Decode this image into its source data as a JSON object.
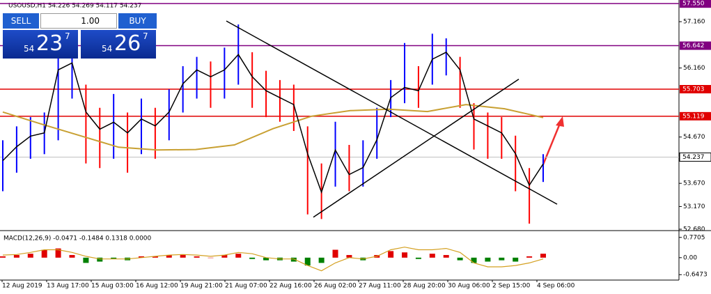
{
  "chart_data": {
    "type": "candlestick",
    "title": "USOUSD,H1  54.226 54.269 54.117 54.237",
    "x_labels": [
      "12 Aug 2019",
      "13 Aug 17:00",
      "15 Aug 03:00",
      "16 Aug 12:00",
      "19 Aug 21:00",
      "21 Aug 07:00",
      "22 Aug 16:00",
      "26 Aug 02:00",
      "27 Aug 11:00",
      "28 Aug 20:00",
      "30 Aug 06:00",
      "2 Sep 15:00",
      "4 Sep 06:00"
    ],
    "ylim": [
      52.65,
      57.628
    ],
    "yticks": [
      {
        "value": 57.16,
        "label": "57.160"
      },
      {
        "value": 56.16,
        "label": "56.160"
      },
      {
        "value": 54.67,
        "label": "54.670"
      },
      {
        "value": 53.67,
        "label": "53.670"
      },
      {
        "value": 53.17,
        "label": "53.170"
      },
      {
        "value": 52.68,
        "label": "52.680"
      }
    ],
    "levels": [
      {
        "price": 57.55,
        "label": "57.550",
        "color": "#800080"
      },
      {
        "price": 56.642,
        "label": "56.642",
        "color": "#800080"
      },
      {
        "price": 55.703,
        "label": "55.703",
        "color": "#e00000"
      },
      {
        "price": 55.119,
        "label": "55.119",
        "color": "#e00000"
      },
      {
        "price": 54.237,
        "label": "54.237",
        "color": "#c0c0c0"
      }
    ],
    "candles": {
      "up_color": "#0000ff",
      "down_color": "#ff0000",
      "high": [
        54.6,
        54.9,
        55.1,
        55.2,
        56.7,
        56.5,
        55.8,
        55.3,
        55.6,
        55.2,
        55.5,
        55.3,
        55.7,
        56.2,
        56.4,
        56.3,
        56.6,
        57.1,
        56.5,
        56.1,
        55.9,
        55.8,
        54.9,
        54.1,
        55.0,
        54.5,
        54.6,
        55.3,
        55.9,
        56.7,
        56.2,
        56.9,
        56.8,
        56.4,
        55.4,
        55.2,
        55.1,
        54.7,
        54.0,
        54.3
      ],
      "low": [
        53.5,
        53.9,
        54.2,
        54.3,
        54.6,
        55.5,
        54.1,
        54.0,
        54.2,
        53.9,
        54.3,
        54.2,
        54.6,
        55.2,
        55.5,
        55.3,
        55.5,
        55.8,
        55.3,
        55.1,
        55.0,
        54.8,
        53.0,
        52.9,
        53.6,
        53.5,
        53.6,
        54.2,
        55.1,
        55.4,
        55.3,
        55.8,
        56.0,
        55.3,
        54.4,
        54.2,
        54.2,
        53.5,
        52.8,
        53.7
      ]
    },
    "ma_fast": {
      "color": "#000000",
      "values": [
        54.16,
        54.46,
        54.69,
        54.76,
        56.12,
        56.27,
        55.21,
        54.84,
        54.99,
        54.76,
        55.06,
        54.91,
        55.21,
        55.82,
        56.12,
        55.97,
        56.12,
        56.45,
        55.97,
        55.67,
        55.52,
        55.37,
        54.31,
        53.48,
        54.39,
        53.86,
        54.01,
        54.61,
        55.52,
        55.74,
        55.67,
        56.35,
        56.5,
        56.12,
        55.06,
        54.91,
        54.76,
        54.31,
        53.63,
        54.09
      ]
    },
    "ma_slow": {
      "color": "#c8a032",
      "values": [
        55.21,
        54.95,
        54.7,
        54.45,
        54.39,
        54.4,
        54.5,
        54.85,
        55.12,
        55.24,
        55.27,
        55.22,
        55.37,
        55.28,
        55.09
      ]
    },
    "trendlines": [
      {
        "from": 57.175,
        "to": 53.22
      },
      {
        "from": 52.94,
        "to": 55.92
      }
    ],
    "macd": {
      "title": "MACD(12,26,9) -0.0471 -0.1484 0.1318 0.0000",
      "ylim": [
        -0.8,
        0.95
      ],
      "yticks": [
        0.7705,
        {
          "value": 0,
          "label": "0.00"
        },
        -0.6473
      ],
      "pos_color": "#e00000",
      "neg_color": "#008000",
      "signal_color": "#d4a020",
      "histogram": [
        0.05,
        0.1,
        0.15,
        0.3,
        0.35,
        0.1,
        -0.2,
        -0.15,
        -0.05,
        -0.1,
        0.05,
        0.05,
        0.1,
        0.1,
        0.05,
        0.0,
        0.1,
        0.15,
        -0.05,
        -0.1,
        -0.1,
        -0.15,
        -0.3,
        -0.2,
        0.3,
        0.1,
        -0.1,
        0.1,
        0.25,
        0.2,
        -0.05,
        0.15,
        0.1,
        -0.1,
        -0.2,
        -0.15,
        -0.1,
        -0.15,
        0.05,
        0.15
      ],
      "signal": [
        0.1,
        0.12,
        0.2,
        0.3,
        0.3,
        0.2,
        0.05,
        -0.05,
        -0.05,
        -0.05,
        0.0,
        0.05,
        0.1,
        0.12,
        0.1,
        0.05,
        0.1,
        0.2,
        0.15,
        0.0,
        -0.05,
        -0.05,
        -0.3,
        -0.5,
        -0.2,
        0.0,
        -0.05,
        0.05,
        0.3,
        0.4,
        0.3,
        0.3,
        0.35,
        0.2,
        -0.2,
        -0.35,
        -0.35,
        -0.3,
        -0.2,
        -0.05
      ]
    }
  },
  "trade_panel": {
    "sell": "SELL",
    "buy": "BUY",
    "volume": "1.00",
    "bid_small": "54",
    "bid_big": "23",
    "bid_pip": "7",
    "ask_small": "54",
    "ask_big": "26",
    "ask_pip": "7"
  }
}
